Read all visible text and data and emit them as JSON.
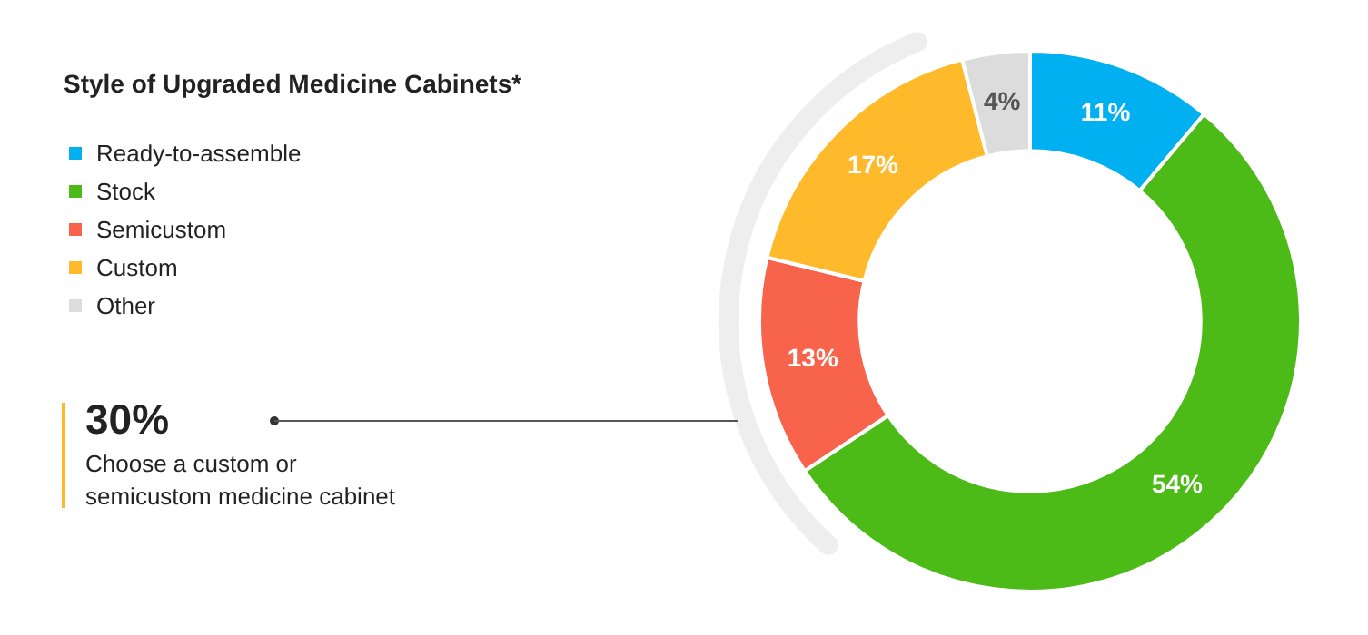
{
  "chart_data": {
    "type": "donut",
    "title": "Style of Upgraded Medicine Cabinets*",
    "categories": [
      "Ready-to-assemble",
      "Stock",
      "Semicustom",
      "Custom",
      "Other"
    ],
    "values": [
      11,
      54,
      13,
      17,
      4
    ],
    "colors": [
      "#00b0f0",
      "#4cbb17",
      "#f7634b",
      "#ffba2c",
      "#dcdcdc"
    ],
    "value_labels": [
      "11%",
      "54%",
      "13%",
      "17%",
      "4%"
    ],
    "legend": "top left",
    "annotations": [
      "30%",
      "Choose a custom or semicustom medicine cabinet"
    ]
  }
}
